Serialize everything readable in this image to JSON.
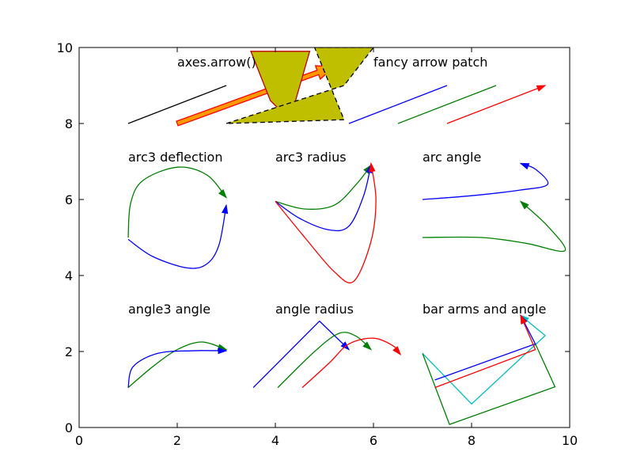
{
  "chart_data": {
    "type": "line",
    "title": "",
    "xlabel": "",
    "ylabel": "",
    "xlim": [
      0,
      10
    ],
    "ylim": [
      0,
      10
    ],
    "grid": false,
    "x_ticks": [
      0,
      2,
      4,
      6,
      8,
      10
    ],
    "y_ticks": [
      0,
      2,
      4,
      6,
      8,
      10
    ],
    "annotations": [
      {
        "text": "axes.arrow()",
        "x": 2.0,
        "y": 9.5
      },
      {
        "text": "fancy arrow patch",
        "x": 6.0,
        "y": 9.5
      },
      {
        "text": "arc3 deflection",
        "x": 1.0,
        "y": 7.0
      },
      {
        "text": "arc3 radius",
        "x": 4.0,
        "y": 7.0
      },
      {
        "text": "arc angle",
        "x": 7.0,
        "y": 7.0
      },
      {
        "text": "angle3 angle",
        "x": 1.0,
        "y": 3.0
      },
      {
        "text": "angle radius",
        "x": 4.0,
        "y": 3.0
      },
      {
        "text": "bar arms and angle",
        "x": 7.0,
        "y": 3.0
      }
    ],
    "series": [
      {
        "color": "#000000",
        "kind": "line",
        "points": [
          [
            1.0,
            8.0
          ],
          [
            3.0,
            9.0
          ]
        ]
      },
      {
        "color": "#0000ff",
        "kind": "line",
        "points": [
          [
            5.5,
            8.0
          ],
          [
            7.5,
            9.0
          ]
        ]
      },
      {
        "color": "#008000",
        "kind": "line",
        "points": [
          [
            6.5,
            8.0
          ],
          [
            8.5,
            9.0
          ]
        ]
      },
      {
        "color": "#ff0000",
        "kind": "arrow",
        "points": [
          [
            7.5,
            8.0
          ],
          [
            9.5,
            9.0
          ]
        ]
      },
      {
        "color": "#008000",
        "kind": "arrow",
        "points": [
          [
            1.0,
            5.0
          ],
          [
            1.05,
            5.9
          ],
          [
            1.3,
            6.5
          ],
          [
            2.0,
            6.85
          ],
          [
            2.6,
            6.65
          ],
          [
            3.0,
            6.05
          ]
        ]
      },
      {
        "color": "#0000ff",
        "kind": "arrow",
        "points": [
          [
            1.0,
            4.95
          ],
          [
            1.5,
            4.5
          ],
          [
            2.2,
            4.2
          ],
          [
            2.6,
            4.3
          ],
          [
            2.85,
            4.8
          ],
          [
            3.0,
            5.85
          ]
        ]
      },
      {
        "color": "#008000",
        "kind": "arrow",
        "points": [
          [
            4.0,
            5.95
          ],
          [
            4.6,
            5.75
          ],
          [
            5.2,
            5.85
          ],
          [
            5.65,
            6.4
          ],
          [
            5.95,
            6.9
          ]
        ]
      },
      {
        "color": "#0000ff",
        "kind": "arrow",
        "points": [
          [
            4.0,
            5.95
          ],
          [
            4.5,
            5.5
          ],
          [
            5.1,
            5.2
          ],
          [
            5.5,
            5.3
          ],
          [
            5.8,
            6.1
          ],
          [
            5.95,
            6.92
          ]
        ]
      },
      {
        "color": "#ff0000",
        "kind": "arrow",
        "points": [
          [
            4.0,
            5.95
          ],
          [
            4.6,
            5.0
          ],
          [
            5.2,
            4.1
          ],
          [
            5.6,
            3.85
          ],
          [
            5.95,
            4.9
          ],
          [
            6.05,
            6.0
          ],
          [
            5.95,
            6.95
          ]
        ]
      },
      {
        "color": "#0000ff",
        "kind": "arrow",
        "points": [
          [
            7.0,
            6.0
          ],
          [
            8.0,
            6.1
          ],
          [
            9.0,
            6.25
          ],
          [
            9.55,
            6.4
          ],
          [
            9.3,
            6.8
          ],
          [
            9.0,
            6.95
          ]
        ]
      },
      {
        "color": "#008000",
        "kind": "arrow",
        "points": [
          [
            7.0,
            5.0
          ],
          [
            8.2,
            5.0
          ],
          [
            9.1,
            4.85
          ],
          [
            9.9,
            4.65
          ],
          [
            9.55,
            5.3
          ],
          [
            9.0,
            5.95
          ]
        ]
      },
      {
        "color": "#008000",
        "kind": "arrow",
        "points": [
          [
            1.0,
            1.05
          ],
          [
            1.5,
            1.6
          ],
          [
            2.0,
            2.05
          ],
          [
            2.5,
            2.25
          ],
          [
            3.0,
            2.05
          ]
        ]
      },
      {
        "color": "#0000ff",
        "kind": "arrow",
        "points": [
          [
            1.0,
            1.05
          ],
          [
            1.1,
            1.6
          ],
          [
            1.6,
            1.95
          ],
          [
            2.3,
            2.02
          ],
          [
            3.0,
            2.02
          ]
        ]
      },
      {
        "color": "#0000ff",
        "kind": "arrow",
        "points": [
          [
            3.55,
            1.05
          ],
          [
            4.9,
            2.8
          ],
          [
            5.5,
            2.05
          ]
        ]
      },
      {
        "color": "#008000",
        "kind": "arrow",
        "points": [
          [
            4.05,
            1.05
          ],
          [
            4.8,
            2.0
          ],
          [
            5.3,
            2.48
          ],
          [
            5.65,
            2.4
          ],
          [
            5.95,
            2.05
          ]
        ]
      },
      {
        "color": "#ff0000",
        "kind": "arrow",
        "points": [
          [
            4.55,
            1.05
          ],
          [
            5.1,
            1.7
          ],
          [
            5.5,
            2.2
          ],
          [
            6.0,
            2.35
          ],
          [
            6.4,
            2.15
          ],
          [
            6.55,
            1.92
          ]
        ]
      },
      {
        "color": "#00bfbf",
        "kind": "arrow",
        "points": [
          [
            7.0,
            1.95
          ],
          [
            8.0,
            0.62
          ],
          [
            9.5,
            2.42
          ],
          [
            9.0,
            2.95
          ]
        ]
      },
      {
        "color": "#008000",
        "kind": "line",
        "points": [
          [
            7.0,
            1.95
          ],
          [
            7.55,
            0.08
          ],
          [
            9.7,
            1.07
          ],
          [
            9.3,
            2.2
          ]
        ]
      },
      {
        "color": "#0000ff",
        "kind": "arrow",
        "points": [
          [
            7.25,
            1.25
          ],
          [
            9.3,
            2.2
          ],
          [
            9.0,
            2.95
          ]
        ]
      },
      {
        "color": "#ff0000",
        "kind": "arrow",
        "points": [
          [
            7.25,
            1.05
          ],
          [
            9.3,
            2.05
          ],
          [
            9.0,
            2.95
          ]
        ]
      }
    ],
    "patches": [
      {
        "kind": "wide-arrow",
        "fill": "#ff9900",
        "edge": "#ff0000",
        "points": [
          [
            2.0,
            8.0
          ],
          [
            5.2,
            9.5
          ],
          [
            5.5,
            9.8
          ]
        ]
      },
      {
        "kind": "wedge",
        "fill": "#bfbf00",
        "edge": "#bf0000",
        "points": [
          [
            3.5,
            9.9
          ],
          [
            4.7,
            9.9
          ],
          [
            4.3,
            8.1
          ],
          [
            3.9,
            8.6
          ]
        ]
      },
      {
        "kind": "wedge-dashed",
        "fill": "#bfbf00",
        "edge": "#000000",
        "points": [
          [
            3.0,
            8.0
          ],
          [
            5.4,
            9.0
          ],
          [
            6.0,
            10.0
          ],
          [
            4.8,
            10.0
          ],
          [
            5.4,
            8.1
          ]
        ]
      }
    ]
  }
}
